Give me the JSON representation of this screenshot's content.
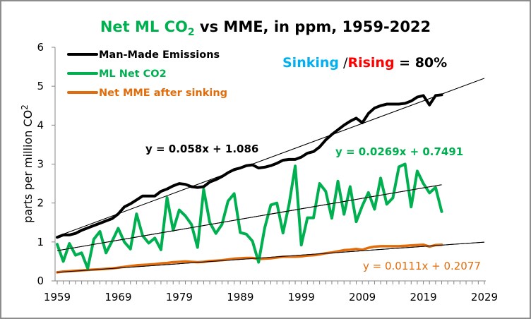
{
  "chart_data": {
    "type": "line",
    "title": {
      "part1": "Net ML CO",
      "part1_sub": "2",
      "part2": " vs MME, in ppm, 1959-2022"
    },
    "xlabel": "",
    "ylabel": "parts per million CO",
    "ylabel_sub": "2",
    "xlim": [
      1959,
      2029
    ],
    "ylim": [
      0,
      6
    ],
    "x_ticks": [
      1959,
      1969,
      1979,
      1989,
      1999,
      2009,
      2019,
      2029
    ],
    "x_tick_labels": [
      "1959",
      "1969",
      "1979",
      "1989",
      "1999",
      "2009",
      "2019",
      "2029"
    ],
    "y_ticks": [
      0,
      1,
      2,
      3,
      4,
      5,
      6
    ],
    "y_tick_labels": [
      "0",
      "1",
      "2",
      "3",
      "4",
      "5",
      "6"
    ],
    "grid": false,
    "legend_position": "top-left",
    "x": [
      1959,
      1960,
      1961,
      1962,
      1963,
      1964,
      1965,
      1966,
      1967,
      1968,
      1969,
      1970,
      1971,
      1972,
      1973,
      1974,
      1975,
      1976,
      1977,
      1978,
      1979,
      1980,
      1981,
      1982,
      1983,
      1984,
      1985,
      1986,
      1987,
      1988,
      1989,
      1990,
      1991,
      1992,
      1993,
      1994,
      1995,
      1996,
      1997,
      1998,
      1999,
      2000,
      2001,
      2002,
      2003,
      2004,
      2005,
      2006,
      2007,
      2008,
      2009,
      2010,
      2011,
      2012,
      2013,
      2014,
      2015,
      2016,
      2017,
      2018,
      2019,
      2020,
      2021,
      2022
    ],
    "series": [
      {
        "name": "Man-Made Emissions",
        "color": "#000000",
        "values": [
          1.12,
          1.18,
          1.18,
          1.22,
          1.3,
          1.36,
          1.42,
          1.48,
          1.54,
          1.6,
          1.72,
          1.9,
          1.98,
          2.08,
          2.18,
          2.18,
          2.18,
          2.3,
          2.36,
          2.44,
          2.5,
          2.48,
          2.42,
          2.4,
          2.42,
          2.54,
          2.6,
          2.68,
          2.78,
          2.86,
          2.9,
          2.96,
          2.98,
          2.9,
          2.92,
          2.96,
          3.02,
          3.1,
          3.12,
          3.12,
          3.18,
          3.28,
          3.32,
          3.44,
          3.62,
          3.76,
          3.88,
          4.0,
          4.1,
          4.18,
          4.06,
          4.3,
          4.44,
          4.5,
          4.54,
          4.54,
          4.54,
          4.56,
          4.62,
          4.72,
          4.76,
          4.52,
          4.76,
          4.78
        ],
        "trendline": {
          "slope": 0.058,
          "intercept": 1.086,
          "label": "y = 0.058x + 1.086",
          "extends_to": 2029
        }
      },
      {
        "name": "ML Net CO2",
        "color": "#00b050",
        "values": [
          0.94,
          0.5,
          0.96,
          0.66,
          0.72,
          0.32,
          1.07,
          1.27,
          0.72,
          1.02,
          1.35,
          1.0,
          0.82,
          1.72,
          1.16,
          0.97,
          1.1,
          0.8,
          2.14,
          1.3,
          1.82,
          1.67,
          1.45,
          0.86,
          2.35,
          1.5,
          1.22,
          1.45,
          2.05,
          2.24,
          1.24,
          1.2,
          1.02,
          0.48,
          1.36,
          1.95,
          2.0,
          1.23,
          1.97,
          2.95,
          0.92,
          1.62,
          1.62,
          2.5,
          2.3,
          1.61,
          2.56,
          1.71,
          2.42,
          1.52,
          1.93,
          2.27,
          1.84,
          2.64,
          1.97,
          2.13,
          2.93,
          3.0,
          1.9,
          2.82,
          2.5,
          2.26,
          2.4,
          1.78
        ],
        "trendline": {
          "slope": 0.0269,
          "intercept": 0.7491,
          "label": "y = 0.0269x + 0.7491",
          "extends_to": 2022
        }
      },
      {
        "name": "Net MME after sinking",
        "color": "#e36c0a",
        "values": [
          0.22,
          0.24,
          0.25,
          0.26,
          0.27,
          0.28,
          0.29,
          0.3,
          0.31,
          0.32,
          0.34,
          0.36,
          0.38,
          0.4,
          0.41,
          0.42,
          0.43,
          0.45,
          0.46,
          0.48,
          0.49,
          0.5,
          0.49,
          0.48,
          0.49,
          0.51,
          0.52,
          0.53,
          0.55,
          0.57,
          0.58,
          0.59,
          0.59,
          0.56,
          0.57,
          0.58,
          0.6,
          0.62,
          0.62,
          0.62,
          0.63,
          0.65,
          0.66,
          0.68,
          0.71,
          0.73,
          0.76,
          0.79,
          0.8,
          0.82,
          0.8,
          0.85,
          0.88,
          0.89,
          0.89,
          0.89,
          0.89,
          0.9,
          0.91,
          0.92,
          0.93,
          0.88,
          0.92,
          0.93
        ],
        "trendline": {
          "slope": 0.0111,
          "intercept": 0.2077,
          "label": "y = 0.0111x + 0.2077",
          "extends_to": 2029
        }
      }
    ],
    "annotations": {
      "sinking": "Sinking",
      "slash": " /",
      "rising": "Rising",
      "equals": " = 80%",
      "sinking_color": "#00b0f0",
      "rising_color": "#ff0000"
    },
    "title_colors": {
      "part1": "#00b050",
      "part2": "#000000"
    }
  }
}
